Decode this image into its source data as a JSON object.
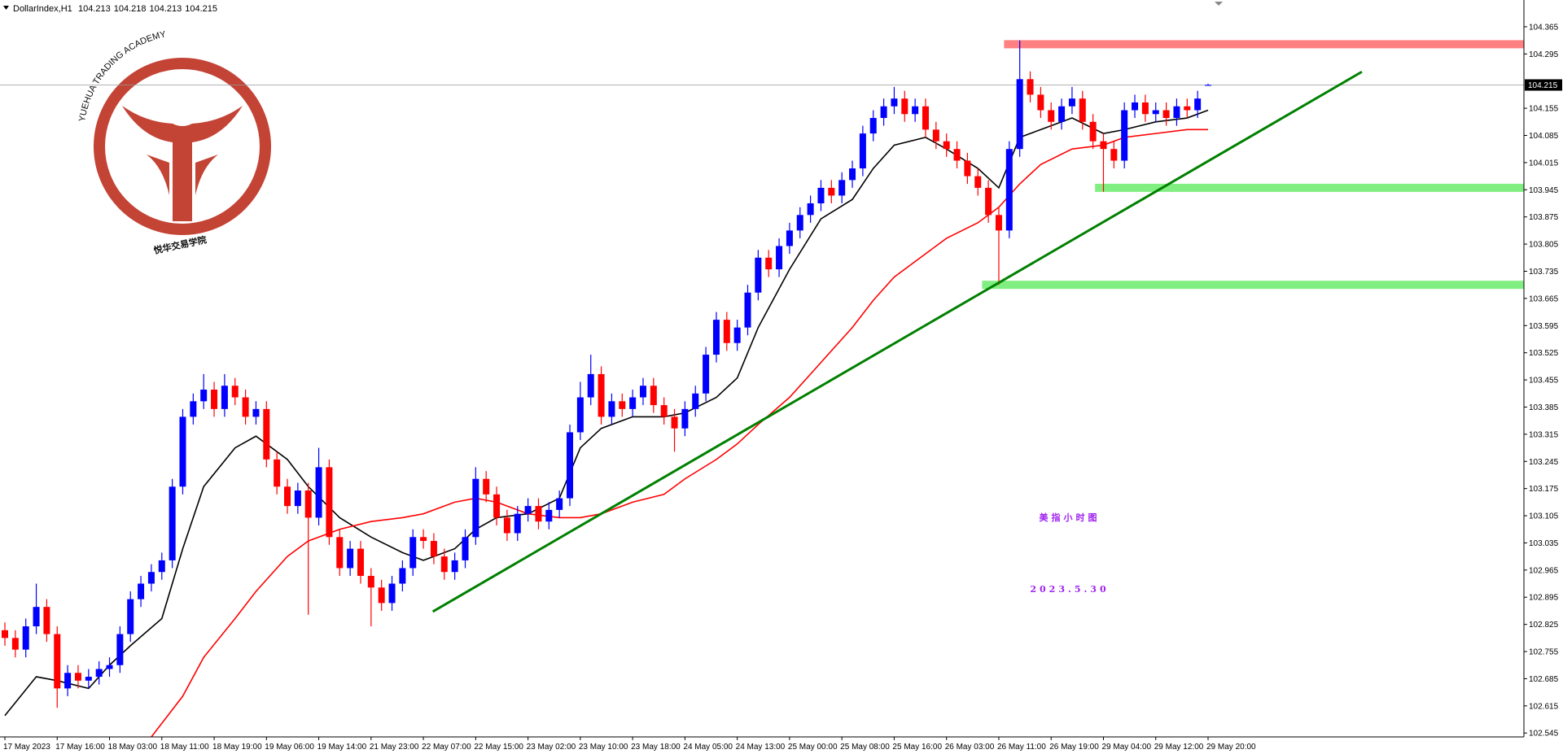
{
  "chart_data": {
    "type": "candlestick",
    "symbol": "DollarIndex,H1",
    "categories": [
      "17 May 2023",
      null,
      null,
      null,
      null,
      "17 May 16:00",
      null,
      null,
      null,
      null,
      "18 May 03:00",
      null,
      null,
      null,
      null,
      "18 May 11:00",
      null,
      null,
      null,
      null,
      "18 May 19:00",
      null,
      null,
      null,
      null,
      "19 May 06:00",
      null,
      null,
      null,
      null,
      "19 May 14:00",
      null,
      null,
      null,
      null,
      "21 May 23:00",
      null,
      null,
      null,
      null,
      "22 May 07:00",
      null,
      null,
      null,
      null,
      "22 May 15:00",
      null,
      null,
      null,
      null,
      "23 May 02:00",
      null,
      null,
      null,
      null,
      "23 May 10:00",
      null,
      null,
      null,
      null,
      "23 May 18:00",
      null,
      null,
      null,
      null,
      "24 May 05:00",
      null,
      null,
      null,
      null,
      "24 May 13:00",
      null,
      null,
      null,
      null,
      "25 May 00:00",
      null,
      null,
      null,
      null,
      "25 May 08:00",
      null,
      null,
      null,
      null,
      "25 May 16:00",
      null,
      null,
      null,
      null,
      "26 May 03:00",
      null,
      null,
      null,
      null,
      "26 May 11:00",
      null,
      null,
      null,
      null,
      "26 May 19:00",
      null,
      null,
      null,
      null,
      "29 May 04:00",
      null,
      null,
      null,
      null,
      "29 May 12:00",
      null,
      null,
      null,
      null,
      "29 May 20:00"
    ],
    "open": [
      102.81,
      102.79,
      102.76,
      102.82,
      102.87,
      102.8,
      102.66,
      102.7,
      102.68,
      102.69,
      102.71,
      102.72,
      102.8,
      102.89,
      102.93,
      102.96,
      102.99,
      103.18,
      103.36,
      103.4,
      103.43,
      103.38,
      103.44,
      103.41,
      103.36,
      103.38,
      103.25,
      103.18,
      103.13,
      103.17,
      103.1,
      103.23,
      103.05,
      102.97,
      103.02,
      102.95,
      102.92,
      102.88,
      102.93,
      102.97,
      103.05,
      103.04,
      103.0,
      102.96,
      102.99,
      103.05,
      103.2,
      103.16,
      103.1,
      103.06,
      103.11,
      103.13,
      103.09,
      103.12,
      103.15,
      103.32,
      103.41,
      103.47,
      103.36,
      103.4,
      103.38,
      103.41,
      103.44,
      103.39,
      103.36,
      103.33,
      103.38,
      103.42,
      103.52,
      103.61,
      103.55,
      103.59,
      103.68,
      103.77,
      103.74,
      103.8,
      103.84,
      103.88,
      103.91,
      103.95,
      103.93,
      103.97,
      104.0,
      104.09,
      104.13,
      104.16,
      104.18,
      104.14,
      104.16,
      104.1,
      104.07,
      104.05,
      104.02,
      103.98,
      103.95,
      103.88,
      103.84,
      104.05,
      104.23,
      104.19,
      104.15,
      104.12,
      104.16,
      104.18,
      104.12,
      104.07,
      104.05,
      104.02,
      104.15,
      104.17,
      104.14,
      104.15,
      104.13,
      104.16,
      104.15,
      104.213
    ],
    "high": [
      102.83,
      102.81,
      102.84,
      102.93,
      102.89,
      102.82,
      102.72,
      102.72,
      102.71,
      102.73,
      102.74,
      102.82,
      102.91,
      102.95,
      102.98,
      103.01,
      103.2,
      103.38,
      103.42,
      103.47,
      103.45,
      103.47,
      103.46,
      103.43,
      103.4,
      103.4,
      103.27,
      103.2,
      103.19,
      103.19,
      103.28,
      103.25,
      103.07,
      103.04,
      103.04,
      102.97,
      102.94,
      102.95,
      102.99,
      103.07,
      103.07,
      103.06,
      103.02,
      103.01,
      103.07,
      103.23,
      103.22,
      103.18,
      103.12,
      103.13,
      103.15,
      103.15,
      103.14,
      103.17,
      103.34,
      103.45,
      103.52,
      103.49,
      103.42,
      103.42,
      103.43,
      103.46,
      103.46,
      103.41,
      103.38,
      103.4,
      103.44,
      103.54,
      103.63,
      103.63,
      103.61,
      103.7,
      103.79,
      103.79,
      103.82,
      103.86,
      103.9,
      103.93,
      103.97,
      103.97,
      103.99,
      104.02,
      104.11,
      104.15,
      104.18,
      104.21,
      104.2,
      104.18,
      104.18,
      104.12,
      104.09,
      104.07,
      104.04,
      104.0,
      103.97,
      103.9,
      104.07,
      104.33,
      104.25,
      104.21,
      104.17,
      104.18,
      104.21,
      104.2,
      104.14,
      104.09,
      104.07,
      104.17,
      104.19,
      104.19,
      104.17,
      104.17,
      104.18,
      104.18,
      104.2,
      104.218
    ],
    "low": [
      102.77,
      102.74,
      102.74,
      102.8,
      102.78,
      102.61,
      102.64,
      102.66,
      102.66,
      102.67,
      102.69,
      102.7,
      102.78,
      102.87,
      102.91,
      102.94,
      102.97,
      103.16,
      103.34,
      103.38,
      103.36,
      103.36,
      103.39,
      103.34,
      103.34,
      103.23,
      103.16,
      103.11,
      103.11,
      102.85,
      103.08,
      103.03,
      102.95,
      102.95,
      102.93,
      102.82,
      102.86,
      102.86,
      102.91,
      102.95,
      103.02,
      102.98,
      102.94,
      102.94,
      102.97,
      103.03,
      103.14,
      103.08,
      103.04,
      103.04,
      103.09,
      103.07,
      103.07,
      103.1,
      103.13,
      103.3,
      103.39,
      103.34,
      103.34,
      103.36,
      103.36,
      103.39,
      103.37,
      103.34,
      103.27,
      103.31,
      103.36,
      103.4,
      103.5,
      103.53,
      103.53,
      103.57,
      103.66,
      103.72,
      103.72,
      103.78,
      103.82,
      103.86,
      103.89,
      103.91,
      103.91,
      103.95,
      103.98,
      104.07,
      104.11,
      104.14,
      104.12,
      104.12,
      104.08,
      104.05,
      104.03,
      104.0,
      103.96,
      103.93,
      103.86,
      103.7,
      103.82,
      104.03,
      104.17,
      104.13,
      104.1,
      104.1,
      104.14,
      104.1,
      104.05,
      103.94,
      104.0,
      104.0,
      104.13,
      104.12,
      104.12,
      104.11,
      104.11,
      104.13,
      104.13,
      104.213
    ],
    "close": [
      102.79,
      102.76,
      102.82,
      102.87,
      102.8,
      102.66,
      102.7,
      102.68,
      102.69,
      102.71,
      102.72,
      102.8,
      102.89,
      102.93,
      102.96,
      102.99,
      103.18,
      103.36,
      103.4,
      103.43,
      103.38,
      103.44,
      103.41,
      103.36,
      103.38,
      103.25,
      103.18,
      103.13,
      103.17,
      103.1,
      103.23,
      103.05,
      102.97,
      103.02,
      102.95,
      102.92,
      102.88,
      102.93,
      102.97,
      103.05,
      103.04,
      103.0,
      102.96,
      102.99,
      103.05,
      103.2,
      103.16,
      103.1,
      103.06,
      103.11,
      103.13,
      103.09,
      103.12,
      103.15,
      103.32,
      103.41,
      103.47,
      103.36,
      103.4,
      103.38,
      103.41,
      103.44,
      103.39,
      103.36,
      103.33,
      103.38,
      103.42,
      103.52,
      103.61,
      103.55,
      103.59,
      103.68,
      103.77,
      103.74,
      103.8,
      103.84,
      103.88,
      103.91,
      103.95,
      103.93,
      103.97,
      104.0,
      104.09,
      104.13,
      104.16,
      104.18,
      104.14,
      104.16,
      104.1,
      104.07,
      104.05,
      104.02,
      103.98,
      103.95,
      103.88,
      103.84,
      104.05,
      104.23,
      104.19,
      104.15,
      104.12,
      104.16,
      104.18,
      104.12,
      104.07,
      104.05,
      104.02,
      104.15,
      104.17,
      104.14,
      104.15,
      104.13,
      104.16,
      104.15,
      104.18,
      104.215
    ],
    "up_color": "#0000ff",
    "down_color": "#ff0000",
    "ma_lines": [
      {
        "color": "#000000",
        "x": [
          0,
          3,
          5,
          8,
          10,
          12,
          15,
          17,
          19,
          22,
          24,
          27,
          29,
          32,
          35,
          38,
          40,
          43,
          45,
          47,
          50,
          53,
          55,
          57,
          60,
          63,
          65,
          68,
          70,
          72,
          75,
          78,
          81,
          83,
          85,
          88,
          90,
          93,
          95,
          97,
          99,
          102,
          105,
          107,
          110,
          113,
          115
        ],
        "values": [
          102.59,
          102.69,
          102.68,
          102.66,
          102.72,
          102.77,
          102.84,
          103.02,
          103.18,
          103.28,
          103.31,
          103.25,
          103.18,
          103.1,
          103.05,
          103.01,
          102.99,
          103.02,
          103.07,
          103.1,
          103.11,
          103.15,
          103.28,
          103.33,
          103.36,
          103.36,
          103.37,
          103.41,
          103.46,
          103.59,
          103.74,
          103.87,
          103.92,
          104.0,
          104.06,
          104.08,
          104.05,
          104.0,
          103.95,
          104.08,
          104.1,
          104.13,
          104.09,
          104.1,
          104.12,
          104.13,
          104.15
        ]
      },
      {
        "color": "#ff0000",
        "x": [
          14,
          17,
          19,
          22,
          24,
          27,
          29,
          32,
          35,
          38,
          40,
          43,
          45,
          47,
          50,
          53,
          55,
          57,
          60,
          63,
          65,
          68,
          70,
          72,
          75,
          78,
          81,
          83,
          85,
          88,
          90,
          93,
          95,
          97,
          99,
          102,
          105,
          107,
          110,
          113,
          115
        ],
        "values": [
          102.535,
          102.64,
          102.74,
          102.84,
          102.91,
          103.0,
          103.04,
          103.07,
          103.09,
          103.1,
          103.11,
          103.14,
          103.15,
          103.14,
          103.11,
          103.1,
          103.1,
          103.11,
          103.14,
          103.16,
          103.2,
          103.25,
          103.29,
          103.34,
          103.41,
          103.5,
          103.59,
          103.66,
          103.72,
          103.78,
          103.82,
          103.86,
          103.9,
          103.96,
          104.01,
          104.05,
          104.06,
          104.08,
          104.09,
          104.1,
          104.1
        ]
      }
    ],
    "trendline": {
      "color": "#008000",
      "x": [
        40.9,
        129.7
      ],
      "values": [
        102.858,
        104.249
      ]
    },
    "zones": [
      {
        "color": "#ff8080",
        "x0": 95.5,
        "value": 104.32
      },
      {
        "color": "#80ee80",
        "x0": 104.2,
        "value": 103.95
      },
      {
        "color": "#80ee80",
        "x0": 93.4,
        "value": 103.7
      }
    ],
    "ylim": [
      102.535,
      104.434
    ],
    "yticks": [
      102.545,
      102.615,
      102.685,
      102.755,
      102.825,
      102.895,
      102.965,
      103.035,
      103.105,
      103.175,
      103.245,
      103.315,
      103.385,
      103.455,
      103.525,
      103.595,
      103.665,
      103.735,
      103.805,
      103.875,
      103.945,
      104.015,
      104.085,
      104.155,
      104.295,
      104.365
    ],
    "annotations": [
      "美指小时图",
      "2023.5.30"
    ],
    "annotation_color": "#a020f0"
  },
  "logo": {
    "title": "YUEHUA TRADING ACADEMY",
    "name": "悦华交易学院"
  }
}
